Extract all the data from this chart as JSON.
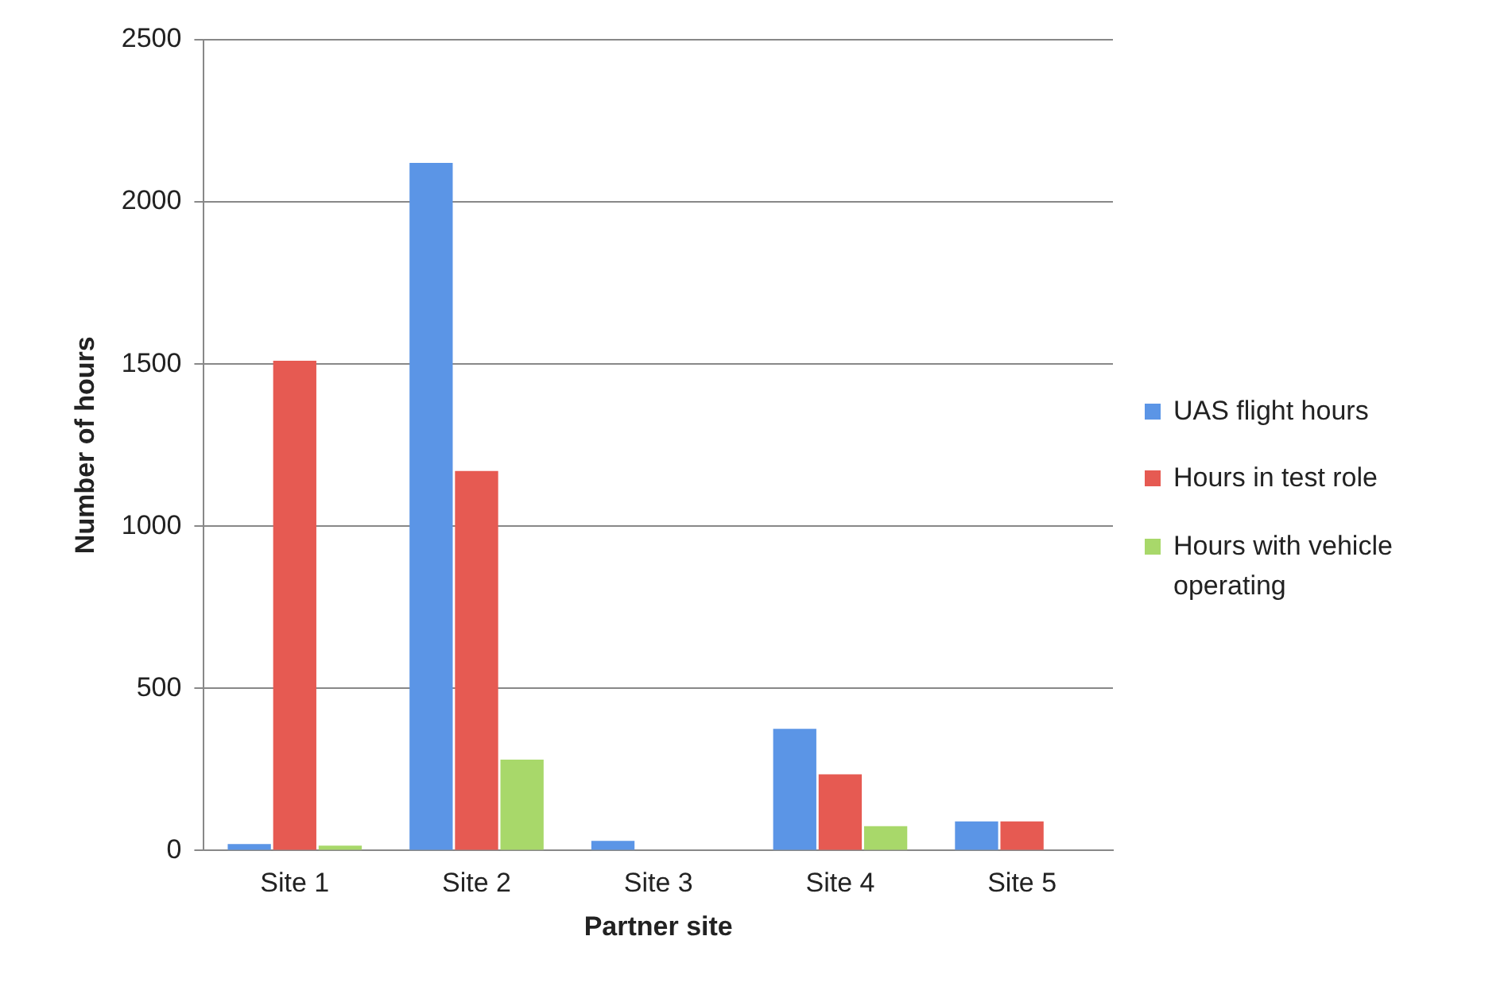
{
  "chart_data": {
    "type": "bar",
    "xlabel": "Partner site",
    "ylabel": "Number of hours",
    "categories": [
      "Site 1",
      "Site 2",
      "Site 3",
      "Site 4",
      "Site 5"
    ],
    "series": [
      {
        "name": "UAS flight hours",
        "color": "#5b95e6",
        "values": [
          20,
          2120,
          30,
          375,
          90
        ]
      },
      {
        "name": "Hours in test role",
        "color": "#e65a52",
        "values": [
          1510,
          1170,
          0,
          235,
          90
        ]
      },
      {
        "name": "Hours with vehicle operating",
        "color": "#a8d86a",
        "values": [
          15,
          280,
          0,
          75,
          0
        ]
      }
    ],
    "ylim": [
      0,
      2500
    ],
    "yticks": [
      0,
      500,
      1000,
      1500,
      2000,
      2500
    ],
    "grid": "y",
    "legend": "right"
  }
}
